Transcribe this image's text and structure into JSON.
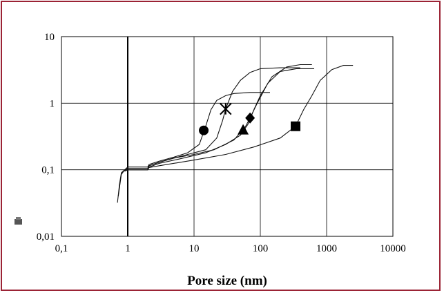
{
  "frame_color": "#9b2335",
  "chart_data": {
    "type": "line",
    "title": "",
    "xlabel": "Pore size (nm)",
    "ylabel": "",
    "x_scale": "log",
    "y_scale": "log",
    "xlim": [
      0.1,
      10000
    ],
    "ylim": [
      0.01,
      10
    ],
    "grid": true,
    "x_ticks": [
      "0,1",
      "1",
      "10",
      "100",
      "1000",
      "10000"
    ],
    "y_ticks": [
      "0,01",
      "0,1",
      "1",
      "10"
    ],
    "series": [
      {
        "marker": "circle",
        "marker_point": [
          14,
          0.39
        ],
        "points": [
          [
            0.7,
            0.032
          ],
          [
            0.75,
            0.06
          ],
          [
            0.8,
            0.09
          ],
          [
            0.9,
            0.1
          ],
          [
            1,
            0.11
          ],
          [
            2,
            0.11
          ],
          [
            2.1,
            0.12
          ],
          [
            3,
            0.135
          ],
          [
            5,
            0.155
          ],
          [
            8,
            0.18
          ],
          [
            12,
            0.24
          ],
          [
            15,
            0.45
          ],
          [
            18,
            0.8
          ],
          [
            22,
            1.1
          ],
          [
            30,
            1.3
          ],
          [
            40,
            1.4
          ],
          [
            70,
            1.45
          ],
          [
            140,
            1.45
          ]
        ]
      },
      {
        "marker": "star",
        "marker_point": [
          30,
          0.82
        ],
        "points": [
          [
            0.72,
            0.04
          ],
          [
            0.8,
            0.085
          ],
          [
            0.9,
            0.1
          ],
          [
            1,
            0.105
          ],
          [
            2,
            0.105
          ],
          [
            2.1,
            0.115
          ],
          [
            3,
            0.13
          ],
          [
            5,
            0.15
          ],
          [
            8,
            0.17
          ],
          [
            15,
            0.2
          ],
          [
            22,
            0.3
          ],
          [
            27,
            0.55
          ],
          [
            30,
            0.82
          ],
          [
            38,
            1.5
          ],
          [
            50,
            2.2
          ],
          [
            70,
            2.9
          ],
          [
            100,
            3.3
          ],
          [
            200,
            3.4
          ],
          [
            400,
            3.4
          ]
        ]
      },
      {
        "marker": "diamond",
        "marker_point": [
          70,
          0.6
        ],
        "points": [
          [
            0.8,
            0.09
          ],
          [
            0.9,
            0.1
          ],
          [
            1,
            0.1
          ],
          [
            2,
            0.1
          ],
          [
            2.1,
            0.115
          ],
          [
            3,
            0.13
          ],
          [
            5,
            0.15
          ],
          [
            10,
            0.17
          ],
          [
            20,
            0.2
          ],
          [
            40,
            0.28
          ],
          [
            60,
            0.45
          ],
          [
            70,
            0.6
          ],
          [
            90,
            1.0
          ],
          [
            130,
            2.0
          ],
          [
            200,
            3.0
          ],
          [
            350,
            3.3
          ],
          [
            650,
            3.3
          ]
        ]
      },
      {
        "marker": "triangle",
        "marker_point": [
          55,
          0.4
        ],
        "points": [
          [
            0.85,
            0.095
          ],
          [
            1,
            0.1
          ],
          [
            2,
            0.1
          ],
          [
            2.1,
            0.11
          ],
          [
            3,
            0.125
          ],
          [
            6,
            0.145
          ],
          [
            15,
            0.18
          ],
          [
            30,
            0.24
          ],
          [
            50,
            0.33
          ],
          [
            65,
            0.48
          ],
          [
            80,
            0.8
          ],
          [
            100,
            1.3
          ],
          [
            150,
            2.5
          ],
          [
            250,
            3.5
          ],
          [
            400,
            3.8
          ],
          [
            600,
            3.8
          ]
        ]
      },
      {
        "marker": "square",
        "marker_point": [
          340,
          0.45
        ],
        "points": [
          [
            0.9,
            0.095
          ],
          [
            1,
            0.1
          ],
          [
            2,
            0.1
          ],
          [
            2.1,
            0.108
          ],
          [
            3,
            0.115
          ],
          [
            10,
            0.14
          ],
          [
            30,
            0.17
          ],
          [
            80,
            0.22
          ],
          [
            200,
            0.3
          ],
          [
            340,
            0.45
          ],
          [
            450,
            0.8
          ],
          [
            600,
            1.3
          ],
          [
            800,
            2.2
          ],
          [
            1200,
            3.2
          ],
          [
            1800,
            3.7
          ],
          [
            2500,
            3.7
          ]
        ]
      }
    ]
  },
  "corner_icon": "small-gray-box-icon"
}
